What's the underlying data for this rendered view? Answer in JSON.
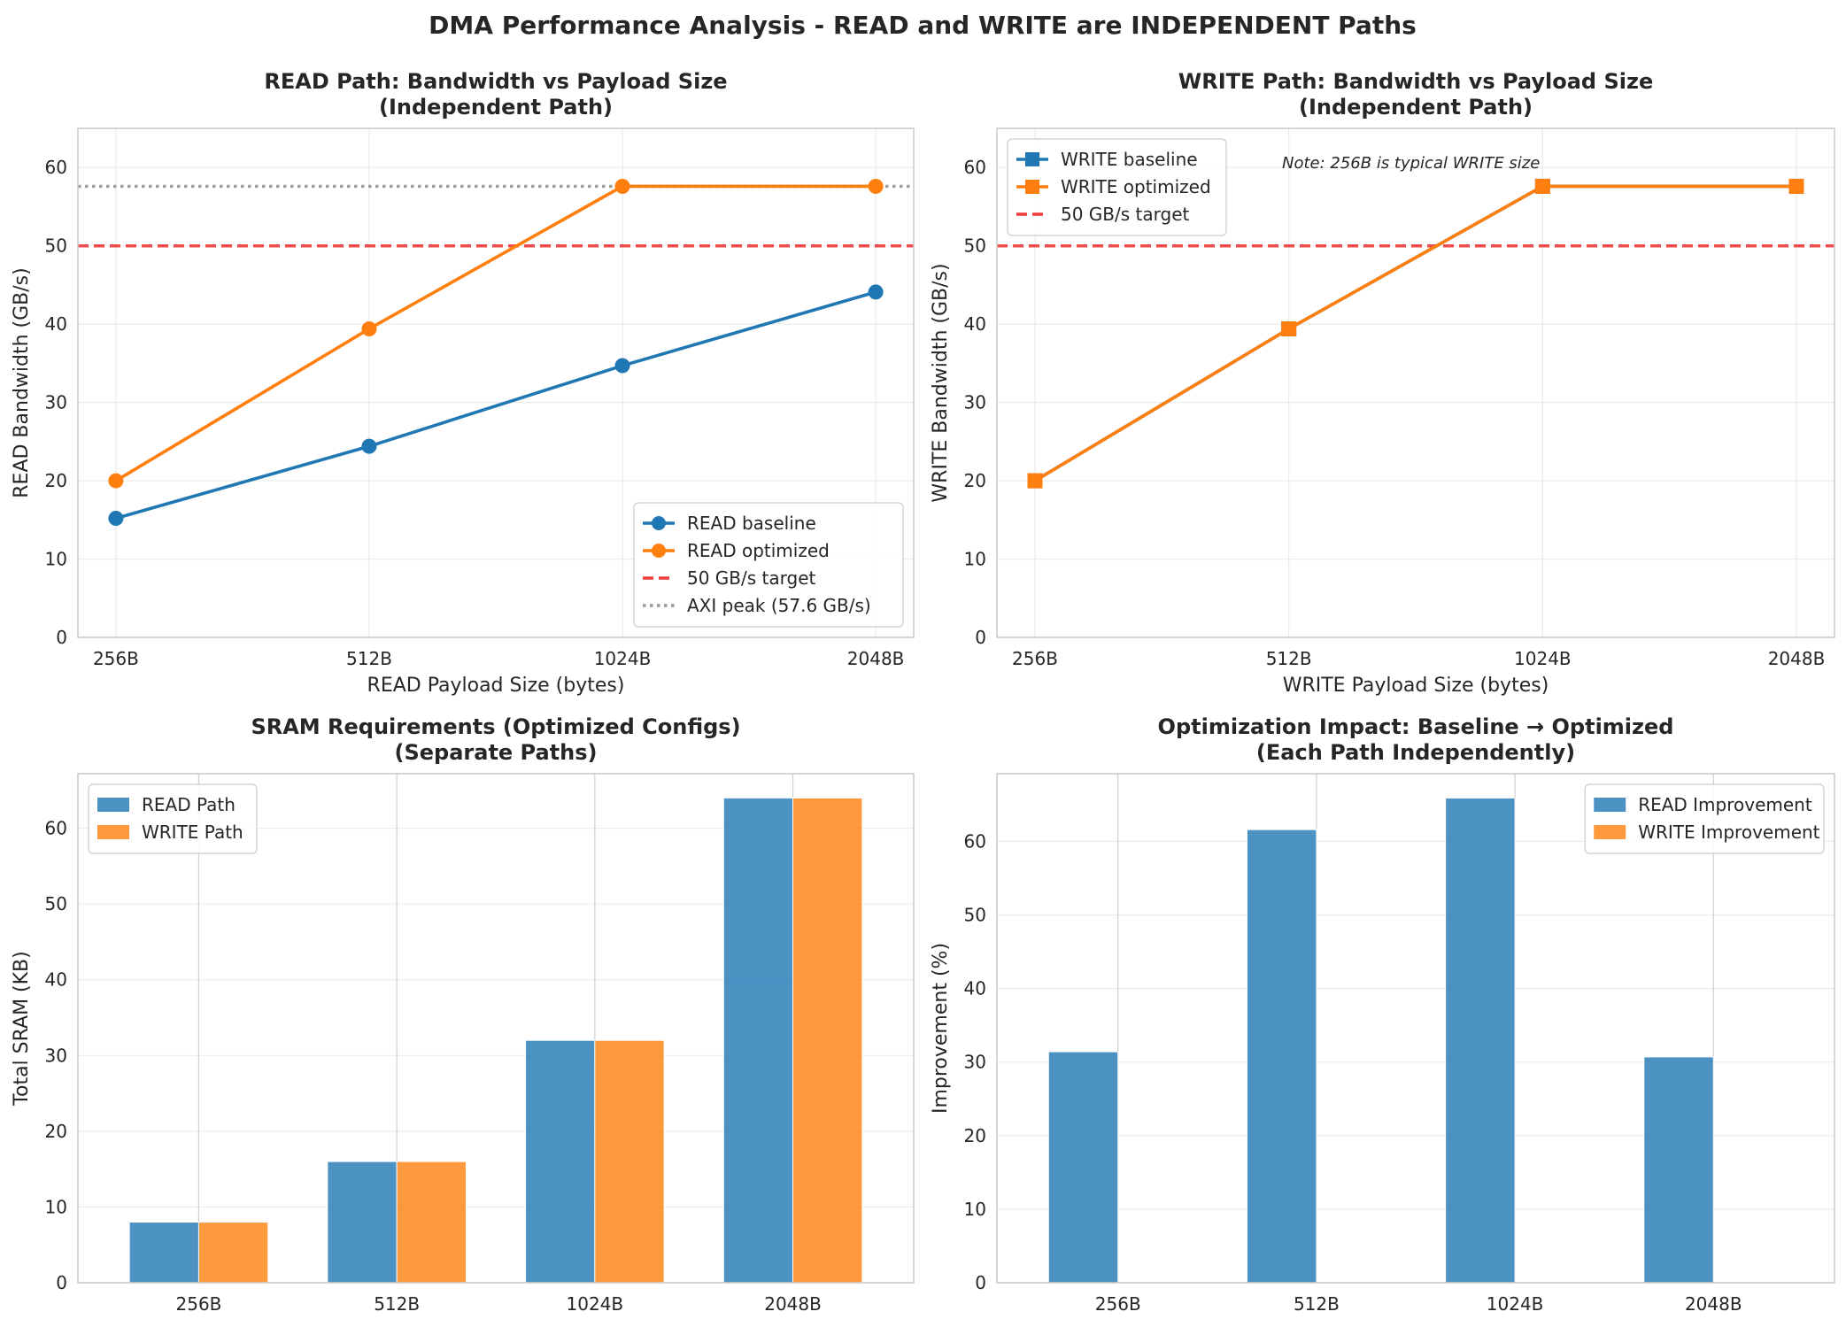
{
  "figure": {
    "suptitle": "DMA Performance Analysis - READ and WRITE are INDEPENDENT Paths"
  },
  "colors": {
    "blue": "#1f77b4",
    "orange": "#ff7f0e",
    "target_red": "#ef3b3b",
    "peak_gray": "#999999",
    "grid": "#ebebeb",
    "spine": "#cccccc"
  },
  "chart_data": [
    {
      "id": "read",
      "type": "line",
      "title": "READ Path: Bandwidth vs Payload Size",
      "subtitle": "(Independent Path)",
      "xlabel": "READ Payload Size (bytes)",
      "ylabel": "READ Bandwidth (GB/s)",
      "categories": [
        "256B",
        "512B",
        "1024B",
        "2048B"
      ],
      "ylim": [
        0,
        65
      ],
      "yticks": [
        0,
        10,
        20,
        30,
        40,
        50,
        60
      ],
      "grid": true,
      "legend": "lower-right",
      "marker": "circle",
      "series": [
        {
          "name": "READ baseline",
          "color": "#1f77b4",
          "values": [
            15.2,
            24.4,
            34.7,
            44.1
          ]
        },
        {
          "name": "READ optimized",
          "color": "#ff7f0e",
          "values": [
            20.0,
            39.4,
            57.6,
            57.6
          ]
        }
      ],
      "hlines": [
        {
          "name": "50 GB/s target",
          "value": 50,
          "style": "dashed",
          "color": "#ef3b3b"
        },
        {
          "name": "AXI peak (57.6 GB/s)",
          "value": 57.6,
          "style": "dotted",
          "color": "#999999"
        }
      ],
      "annotation": ""
    },
    {
      "id": "write",
      "type": "line",
      "title": "WRITE Path: Bandwidth vs Payload Size",
      "subtitle": "(Independent Path)",
      "xlabel": "WRITE Payload Size (bytes)",
      "ylabel": "WRITE Bandwidth (GB/s)",
      "categories": [
        "256B",
        "512B",
        "1024B",
        "2048B"
      ],
      "ylim": [
        0,
        65
      ],
      "yticks": [
        0,
        10,
        20,
        30,
        40,
        50,
        60
      ],
      "grid": true,
      "legend": "upper-left",
      "marker": "square",
      "series": [
        {
          "name": "WRITE baseline",
          "color": "#1f77b4",
          "values": [
            20.0,
            39.4,
            57.6,
            57.6
          ]
        },
        {
          "name": "WRITE optimized",
          "color": "#ff7f0e",
          "values": [
            20.0,
            39.4,
            57.6,
            57.6
          ]
        }
      ],
      "hlines": [
        {
          "name": "50 GB/s target",
          "value": 50,
          "style": "dashed",
          "color": "#ef3b3b"
        }
      ],
      "annotation": "Note: 256B is typical WRITE size"
    },
    {
      "id": "sram",
      "type": "bar",
      "title": "SRAM Requirements (Optimized Configs)",
      "subtitle": "(Separate Paths)",
      "xlabel": "",
      "ylabel": "Total SRAM (KB)",
      "categories": [
        "256B",
        "512B",
        "1024B",
        "2048B"
      ],
      "ylim": [
        0,
        67.2
      ],
      "yticks": [
        0,
        10,
        20,
        30,
        40,
        50,
        60
      ],
      "grid": true,
      "legend": "upper-left",
      "series": [
        {
          "name": "READ Path",
          "color": "#1f77b4",
          "values": [
            8,
            16,
            32,
            64
          ]
        },
        {
          "name": "WRITE Path",
          "color": "#ff7f0e",
          "values": [
            8,
            16,
            32,
            64
          ]
        }
      ]
    },
    {
      "id": "impact",
      "type": "bar",
      "title": "Optimization Impact: Baseline → Optimized",
      "subtitle": "(Each Path Independently)",
      "xlabel": "",
      "ylabel": "Improvement (%)",
      "categories": [
        "256B",
        "512B",
        "1024B",
        "2048B"
      ],
      "ylim": [
        0,
        69.2
      ],
      "yticks": [
        0,
        10,
        20,
        30,
        40,
        50,
        60
      ],
      "grid": true,
      "legend": "upper-right",
      "series": [
        {
          "name": "READ Improvement",
          "color": "#1f77b4",
          "values": [
            31.4,
            61.6,
            65.9,
            30.7
          ]
        },
        {
          "name": "WRITE Improvement",
          "color": "#ff7f0e",
          "values": [
            0,
            0,
            0,
            0
          ]
        }
      ]
    }
  ]
}
